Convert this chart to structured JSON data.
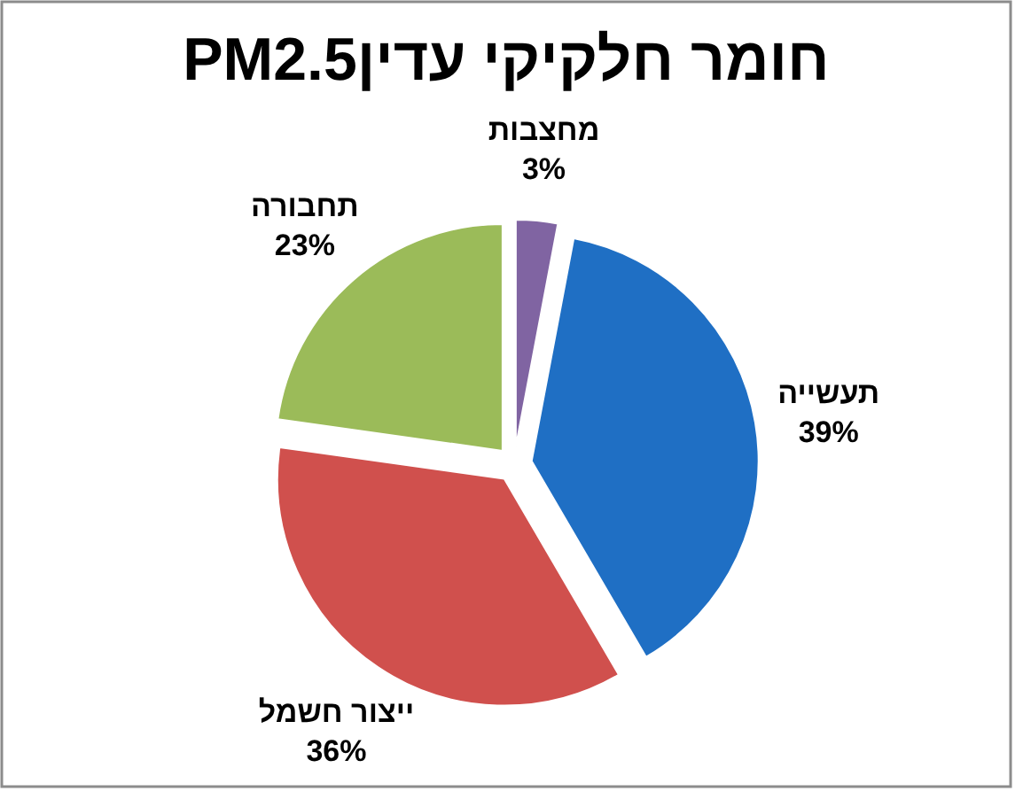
{
  "chart_data": {
    "type": "pie",
    "title": "חומר חלקיקי עדיןPM2.5",
    "categories": [
      "מחצבות",
      "תעשייה",
      "ייצור חשמל",
      "תחבורה"
    ],
    "values": [
      3,
      39,
      36,
      23
    ],
    "colors": [
      "#8064a2",
      "#1f6fc4",
      "#d0504d",
      "#9bbb59"
    ],
    "value_labels": [
      "3%",
      "39%",
      "36%",
      "23%"
    ]
  }
}
